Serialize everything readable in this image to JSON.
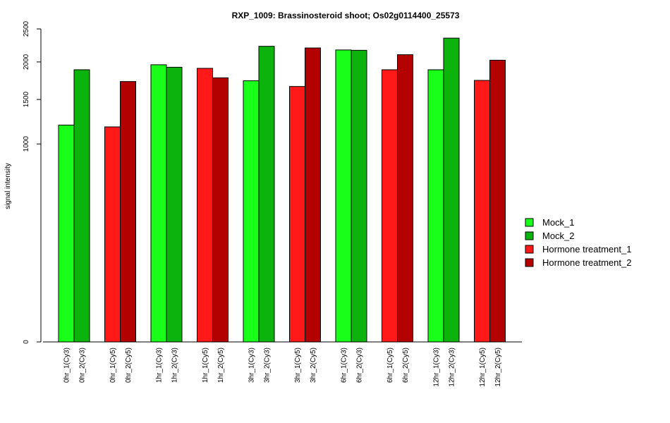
{
  "chart_data": {
    "type": "bar",
    "title": "RXP_1009: Brassinosteroid shoot; Os02g0114400_25573",
    "xlabel": "",
    "ylabel": "signal intensity",
    "y_ticks": [
      0,
      1000,
      1500,
      2000,
      2500
    ],
    "ylim": [
      0,
      2500
    ],
    "categories": [
      "0hr",
      "0hr",
      "1hr",
      "1hr",
      "3hr",
      "3hr",
      "6hr",
      "6hr",
      "12hr",
      "12hr"
    ],
    "groups": [
      {
        "series": "Mock",
        "bars": [
          {
            "label": "0hr_1(Cy3)",
            "value": 1200,
            "color": "#19FF19"
          },
          {
            "label": "0hr_2(Cy3)",
            "value": 1890,
            "color": "#0DB30D"
          }
        ]
      },
      {
        "series": "Hormone",
        "bars": [
          {
            "label": "0hr_1(Cy5)",
            "value": 1180,
            "color": "#FF1919"
          },
          {
            "label": "0hr_2(Cy5)",
            "value": 1730,
            "color": "#B30000"
          }
        ]
      },
      {
        "series": "Mock",
        "bars": [
          {
            "label": "1hr_1(Cy3)",
            "value": 1960,
            "color": "#19FF19"
          },
          {
            "label": "1hr_2(Cy3)",
            "value": 1925,
            "color": "#0DB30D"
          }
        ]
      },
      {
        "series": "Hormone",
        "bars": [
          {
            "label": "1hr_1(Cy5)",
            "value": 1910,
            "color": "#FF1919"
          },
          {
            "label": "1hr_2(Cy5)",
            "value": 1780,
            "color": "#B30000"
          }
        ]
      },
      {
        "series": "Mock",
        "bars": [
          {
            "label": "3hr_1(Cy3)",
            "value": 1740,
            "color": "#19FF19"
          },
          {
            "label": "3hr_2(Cy3)",
            "value": 2230,
            "color": "#0DB30D"
          }
        ]
      },
      {
        "series": "Hormone",
        "bars": [
          {
            "label": "3hr_1(Cy5)",
            "value": 1665,
            "color": "#FF1919"
          },
          {
            "label": "3hr_2(Cy5)",
            "value": 2205,
            "color": "#B30000"
          }
        ]
      },
      {
        "series": "Mock",
        "bars": [
          {
            "label": "6hr_1(Cy3)",
            "value": 2175,
            "color": "#19FF19"
          },
          {
            "label": "6hr_2(Cy3)",
            "value": 2170,
            "color": "#0DB30D"
          }
        ]
      },
      {
        "series": "Hormone",
        "bars": [
          {
            "label": "6hr_1(Cy5)",
            "value": 1890,
            "color": "#FF1919"
          },
          {
            "label": "6hr_2(Cy5)",
            "value": 2105,
            "color": "#B30000"
          }
        ]
      },
      {
        "series": "Mock",
        "bars": [
          {
            "label": "12hr_1(Cy3)",
            "value": 1890,
            "color": "#19FF19"
          },
          {
            "label": "12hr_2(Cy3)",
            "value": 2355,
            "color": "#0DB30D"
          }
        ]
      },
      {
        "series": "Hormone",
        "bars": [
          {
            "label": "12hr_1(Cy5)",
            "value": 1745,
            "color": "#FF1919"
          },
          {
            "label": "12hr_2(Cy5)",
            "value": 2025,
            "color": "#B30000"
          }
        ]
      }
    ],
    "legend": {
      "placement": "right",
      "entries": [
        {
          "name": "Mock_1",
          "color": "#19FF19"
        },
        {
          "name": "Mock_2",
          "color": "#0DB30D"
        },
        {
          "name": "Hormone treatment_1",
          "color": "#FF1919"
        },
        {
          "name": "Hormone treatment_2",
          "color": "#B30000"
        }
      ]
    }
  }
}
